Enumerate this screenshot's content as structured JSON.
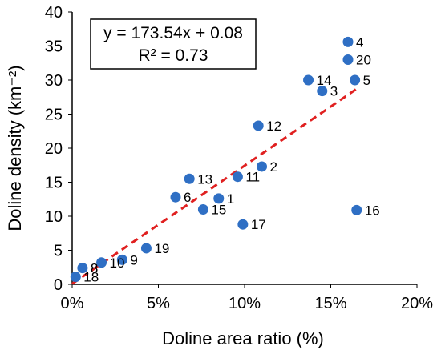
{
  "chart_data": {
    "type": "scatter",
    "title": "",
    "xlabel": "Doline area ratio (%)",
    "ylabel": "Doline density (km⁻²)",
    "xlim": [
      0,
      0.2
    ],
    "ylim": [
      0,
      40
    ],
    "x_ticks": [
      "0%",
      "5%",
      "10%",
      "15%",
      "20%"
    ],
    "y_ticks": [
      "0",
      "5",
      "10",
      "15",
      "20",
      "25",
      "30",
      "35",
      "40"
    ],
    "grid": false,
    "marker_color": "#2f6fc4",
    "trendline_color": "#e02020",
    "points": [
      {
        "label": "1",
        "x": 0.085,
        "y": 12.6
      },
      {
        "label": "2",
        "x": 0.11,
        "y": 17.3
      },
      {
        "label": "3",
        "x": 0.145,
        "y": 28.4
      },
      {
        "label": "4",
        "x": 0.16,
        "y": 35.6
      },
      {
        "label": "5",
        "x": 0.164,
        "y": 30.0
      },
      {
        "label": "6",
        "x": 0.06,
        "y": 12.8
      },
      {
        "label": "8",
        "x": 0.006,
        "y": 2.4
      },
      {
        "label": "9",
        "x": 0.029,
        "y": 3.6
      },
      {
        "label": "10",
        "x": 0.017,
        "y": 3.2
      },
      {
        "label": "11",
        "x": 0.096,
        "y": 15.8
      },
      {
        "label": "12",
        "x": 0.108,
        "y": 23.3
      },
      {
        "label": "13",
        "x": 0.068,
        "y": 15.5
      },
      {
        "label": "14",
        "x": 0.137,
        "y": 30.0
      },
      {
        "label": "15",
        "x": 0.076,
        "y": 11.0
      },
      {
        "label": "16",
        "x": 0.165,
        "y": 10.9
      },
      {
        "label": "17",
        "x": 0.099,
        "y": 8.8
      },
      {
        "label": "18",
        "x": 0.002,
        "y": 1.1
      },
      {
        "label": "19",
        "x": 0.043,
        "y": 5.3
      },
      {
        "label": "20",
        "x": 0.16,
        "y": 33.0
      }
    ],
    "trendline": {
      "slope": 173.54,
      "intercept": 0.08,
      "x_range": [
        0,
        0.165
      ],
      "equation": "y = 173.54x + 0.08",
      "r2_text": "R² = 0.73"
    }
  }
}
